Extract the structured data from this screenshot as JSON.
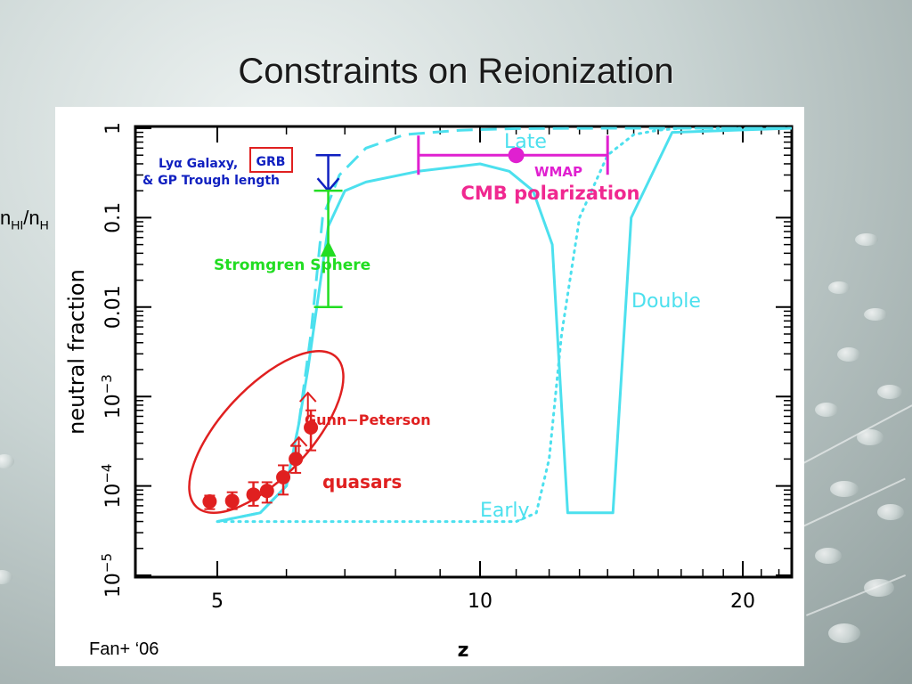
{
  "slide": {
    "title": "Constraints on Reionization",
    "y_quantity_main": "n",
    "y_quantity_main_sub": "HI",
    "y_quantity_sep": "/n",
    "y_quantity_denominator_sub": "H",
    "credit": "Fan+ ‘06"
  },
  "colors": {
    "frame": "#000000",
    "curves": "#4ce0ee",
    "quasar": "#e02020",
    "cmb": "#e020d0",
    "cmb_label": "#f02890",
    "stromgren": "#22dd22",
    "galaxy": "#1020c0",
    "grb_box": "#e02020"
  },
  "chart_data": {
    "type": "line",
    "xscale": "log",
    "yscale": "log",
    "xlim": [
      4.5,
      23
    ],
    "ylim": [
      1e-05,
      1
    ],
    "xlabel": "z",
    "ylabel": "neutral fraction",
    "xticks": [
      {
        "value": 5,
        "label": "5"
      },
      {
        "value": 10,
        "label": "10"
      },
      {
        "value": 20,
        "label": "20"
      }
    ],
    "yticks": [
      {
        "value": 1,
        "label": "1"
      },
      {
        "value": 0.1,
        "label": "0.1"
      },
      {
        "value": 0.01,
        "label": "0.01"
      },
      {
        "value": 0.001,
        "label": "10",
        "exp": "−3"
      },
      {
        "value": 0.0001,
        "label": "10",
        "exp": "−4"
      },
      {
        "value": 1e-05,
        "label": "10",
        "exp": "−5"
      }
    ],
    "grid": false,
    "series": [
      {
        "name": "Late",
        "style": "dashed",
        "x": [
          5.0,
          5.6,
          6.0,
          6.2,
          6.4,
          6.6,
          6.9,
          7.4,
          8.2,
          9.5,
          11,
          14,
          23
        ],
        "y": [
          4e-05,
          5e-05,
          0.0001,
          0.0005,
          0.005,
          0.1,
          0.3,
          0.6,
          0.85,
          0.95,
          0.99,
          1.0,
          1.0
        ]
      },
      {
        "name": "Double",
        "style": "solid",
        "x": [
          5.0,
          5.6,
          6.0,
          6.2,
          6.35,
          6.5,
          6.7,
          7.0,
          7.4,
          8.5,
          10,
          10.8,
          11.5,
          12.1,
          12.6,
          13.3,
          14.2,
          14.9,
          16.6,
          23
        ],
        "y": [
          4e-05,
          5e-05,
          0.0001,
          0.0005,
          0.002,
          0.01,
          0.08,
          0.2,
          0.25,
          0.33,
          0.4,
          0.33,
          0.2,
          0.05,
          5e-05,
          5e-05,
          5e-05,
          0.1,
          0.9,
          1.0
        ]
      },
      {
        "name": "Early",
        "style": "dotted",
        "x": [
          5.0,
          6.0,
          7.0,
          9.0,
          11.0,
          11.6,
          12.0,
          12.4,
          13.0,
          14.0,
          15.0,
          16.0,
          17.0,
          23
        ],
        "y": [
          4e-05,
          4e-05,
          4e-05,
          4e-05,
          4e-05,
          5e-05,
          0.0002,
          0.005,
          0.1,
          0.5,
          0.85,
          0.95,
          1.0,
          1.0
        ]
      }
    ],
    "quasars": {
      "points": [
        {
          "z": 4.9,
          "f": 6.7e-05,
          "lo": 5.5e-05,
          "hi": 7.8e-05
        },
        {
          "z": 5.2,
          "f": 6.8e-05,
          "lo": 5.5e-05,
          "hi": 8.5e-05
        },
        {
          "z": 5.5,
          "f": 8e-05,
          "lo": 6e-05,
          "hi": 0.00011
        },
        {
          "z": 5.7,
          "f": 8.8e-05,
          "lo": 6.5e-05,
          "hi": 0.00011
        },
        {
          "z": 5.95,
          "f": 0.000125,
          "lo": 8e-05,
          "hi": 0.00017
        },
        {
          "z": 6.15,
          "f": 0.0002,
          "lo": 0.00014,
          "hi": 0.00028
        },
        {
          "z": 6.4,
          "f": 0.00045,
          "lo": 0.00025,
          "hi": 0.0007
        }
      ],
      "lower_limit_arrows": [
        {
          "z": 6.2,
          "f": 0.00035
        },
        {
          "z": 6.35,
          "f": 0.0011
        }
      ],
      "label": "Gunn−Peterson",
      "sublabel": "quasars"
    },
    "stromgren": {
      "z": 6.7,
      "f": 0.045,
      "lo": 0.01,
      "hi": 0.2,
      "label": "Stromgren  Sphere"
    },
    "galaxy_grb": {
      "z": 6.7,
      "f": 0.2,
      "hi": 0.5,
      "label_line1": "Lyα Galaxy,",
      "label_grb": "GRB",
      "label_line2": "& GP Trough length"
    },
    "wmap": {
      "z": 11.0,
      "f": 0.5,
      "zlo": 8.5,
      "zhi": 14.0,
      "label": "WMAP",
      "caption": "CMB polarization"
    },
    "curve_labels": {
      "late": "Late",
      "double": "Double",
      "early": "Early"
    }
  }
}
